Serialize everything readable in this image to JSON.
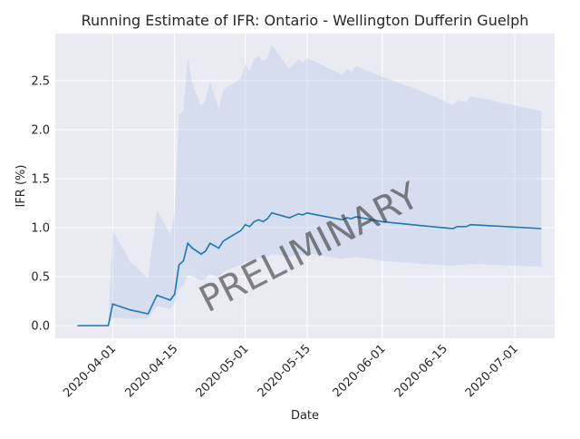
{
  "chart_data": {
    "type": "line",
    "title": "Running Estimate of IFR: Ontario - Wellington Dufferin Guelph",
    "xlabel": "Date",
    "ylabel": "IFR (%)",
    "xlim": [
      "2020-03-19",
      "2020-07-10"
    ],
    "ylim": [
      -0.13,
      2.98
    ],
    "grid": true,
    "x_ticks": [
      "2020-04-01",
      "2020-04-15",
      "2020-05-01",
      "2020-05-15",
      "2020-06-01",
      "2020-06-15",
      "2020-07-01"
    ],
    "y_ticks": [
      "0.0",
      "0.5",
      "1.0",
      "1.5",
      "2.0",
      "2.5"
    ],
    "watermark": "PRELIMINARY",
    "colors": {
      "line": "#1f77b4",
      "band": "#aec7e8",
      "plot_bg": "#eaeaf2",
      "grid": "#ffffff",
      "watermark": "#808080"
    },
    "series": [
      {
        "x": [
          "2020-03-24",
          "2020-03-27",
          "2020-03-31",
          "2020-04-01",
          "2020-04-05",
          "2020-04-09",
          "2020-04-11",
          "2020-04-14",
          "2020-04-15",
          "2020-04-16",
          "2020-04-17",
          "2020-04-18",
          "2020-04-19",
          "2020-04-21",
          "2020-04-22",
          "2020-04-23",
          "2020-04-25",
          "2020-04-26",
          "2020-04-27",
          "2020-04-30",
          "2020-05-01",
          "2020-05-02",
          "2020-05-03",
          "2020-05-04",
          "2020-05-05",
          "2020-05-06",
          "2020-05-07",
          "2020-05-11",
          "2020-05-13",
          "2020-05-14",
          "2020-05-15",
          "2020-05-16",
          "2020-05-23",
          "2020-05-24",
          "2020-05-25",
          "2020-05-26",
          "2020-06-01",
          "2020-06-10",
          "2020-06-17",
          "2020-06-18",
          "2020-06-20",
          "2020-06-21",
          "2020-07-07"
        ],
        "y": [
          0.0,
          0.0,
          0.0,
          0.22,
          0.16,
          0.12,
          0.31,
          0.26,
          0.32,
          0.62,
          0.66,
          0.84,
          0.79,
          0.73,
          0.76,
          0.84,
          0.79,
          0.86,
          0.89,
          0.97,
          1.03,
          1.01,
          1.06,
          1.08,
          1.06,
          1.09,
          1.15,
          1.1,
          1.14,
          1.13,
          1.15,
          1.14,
          1.08,
          1.1,
          1.09,
          1.11,
          1.06,
          1.02,
          0.99,
          1.01,
          1.01,
          1.03,
          0.99
        ],
        "lower": [
          0.0,
          0.0,
          0.0,
          0.08,
          0.07,
          0.07,
          0.2,
          0.17,
          0.23,
          0.38,
          0.41,
          0.52,
          0.5,
          0.46,
          0.48,
          0.53,
          0.49,
          0.55,
          0.57,
          0.62,
          0.65,
          0.64,
          0.67,
          0.69,
          0.68,
          0.7,
          0.73,
          0.7,
          0.73,
          0.72,
          0.73,
          0.73,
          0.68,
          0.69,
          0.69,
          0.7,
          0.66,
          0.63,
          0.61,
          0.62,
          0.62,
          0.63,
          0.6
        ],
        "upper": [
          0.0,
          0.0,
          0.0,
          0.97,
          0.65,
          0.48,
          1.18,
          0.93,
          1.15,
          2.15,
          2.2,
          2.73,
          2.47,
          2.24,
          2.3,
          2.49,
          2.22,
          2.4,
          2.44,
          2.52,
          2.67,
          2.6,
          2.72,
          2.75,
          2.7,
          2.73,
          2.86,
          2.62,
          2.72,
          2.68,
          2.73,
          2.71,
          2.56,
          2.62,
          2.59,
          2.65,
          2.54,
          2.39,
          2.25,
          2.3,
          2.28,
          2.34,
          2.19
        ]
      }
    ]
  }
}
